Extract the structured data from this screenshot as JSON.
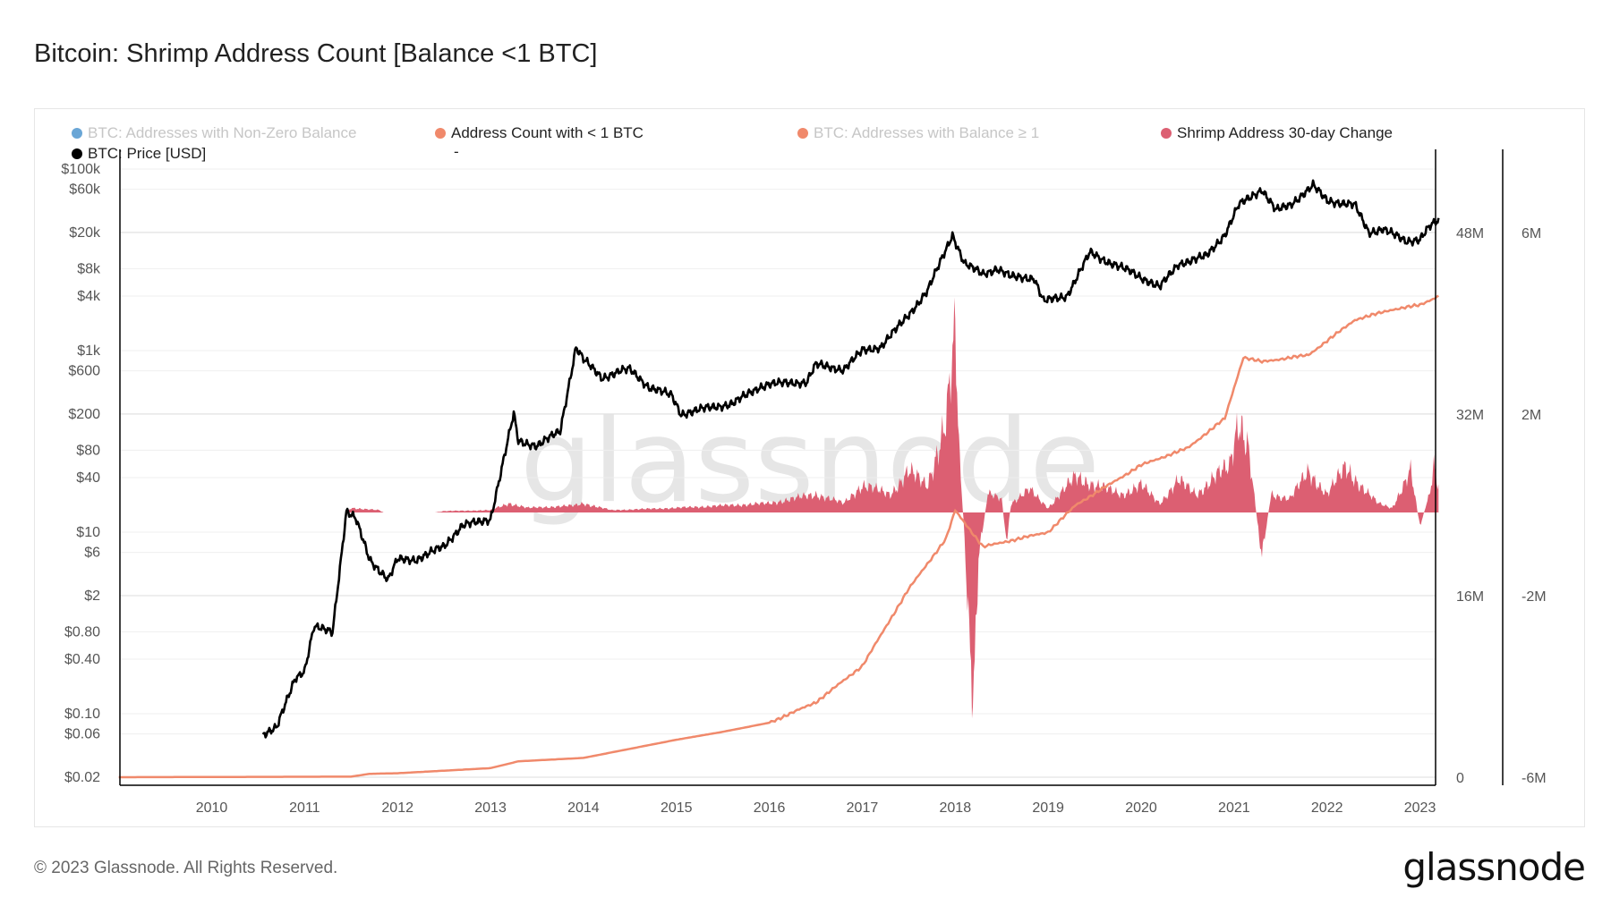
{
  "header": {
    "title": "Bitcoin: Shrimp Address Count [Balance <1 BTC]"
  },
  "footer": {
    "copyright": "© 2023 Glassnode. All Rights Reserved.",
    "logo": "glassnode"
  },
  "watermark": "glassnode",
  "legend": [
    {
      "label": "BTC: Addresses with Non-Zero Balance",
      "color": "#6aa6d6",
      "active": false
    },
    {
      "label": "Address Count with < 1 BTC",
      "color": "#f0896b",
      "active": true
    },
    {
      "label": "BTC: Addresses with Balance ≥ 1",
      "color": "#f0896b",
      "active": false
    },
    {
      "label": "Shrimp Address 30-day Change",
      "color": "#dc5f72",
      "active": true
    },
    {
      "label": "BTC: Price [USD]",
      "color": "#000000",
      "active": true
    },
    {
      "label": "-",
      "color": "",
      "active": true
    }
  ],
  "chart_data": {
    "type": "line",
    "title": "Bitcoin: Shrimp Address Count [Balance <1 BTC]",
    "x_ticks": [
      "2010",
      "2011",
      "2012",
      "2013",
      "2014",
      "2015",
      "2016",
      "2017",
      "2018",
      "2019",
      "2020",
      "2021",
      "2022",
      "2023"
    ],
    "xlim": [
      2009.0,
      2023.2
    ],
    "y_left": {
      "scale": "log",
      "ticks": [
        "$100k",
        "$60k",
        "$20k",
        "$8k",
        "$4k",
        "$1k",
        "$600",
        "$200",
        "$80",
        "$40",
        "$10",
        "$6",
        "$2",
        "$0.80",
        "$0.40",
        "$0.10",
        "$0.06",
        "$0.02"
      ],
      "tick_values": [
        100000,
        60000,
        20000,
        8000,
        4000,
        1000,
        600,
        200,
        80,
        40,
        10,
        6,
        2,
        0.8,
        0.4,
        0.1,
        0.06,
        0.02
      ]
    },
    "y_right1": {
      "ticks": [
        "48M",
        "32M",
        "16M",
        "0"
      ],
      "tick_values": [
        48,
        32,
        16,
        0
      ],
      "unit": "M"
    },
    "y_right2": {
      "ticks": [
        "6M",
        "2M",
        "-2M",
        "-6M"
      ],
      "tick_values": [
        6,
        2,
        -2,
        -6
      ],
      "unit": "M"
    },
    "grid": true,
    "legend_position": "top",
    "series": [
      {
        "name": "BTC: Price [USD]",
        "type": "line",
        "axis": "left",
        "color": "#000000",
        "points": [
          [
            2010.55,
            0.06
          ],
          [
            2010.7,
            0.07
          ],
          [
            2010.9,
            0.25
          ],
          [
            2011.0,
            0.3
          ],
          [
            2011.1,
            0.9
          ],
          [
            2011.3,
            0.8
          ],
          [
            2011.45,
            17
          ],
          [
            2011.55,
            14
          ],
          [
            2011.7,
            5
          ],
          [
            2011.9,
            3
          ],
          [
            2012.0,
            5
          ],
          [
            2012.2,
            5
          ],
          [
            2012.5,
            7
          ],
          [
            2012.7,
            12
          ],
          [
            2012.9,
            13
          ],
          [
            2013.0,
            14
          ],
          [
            2013.25,
            200
          ],
          [
            2013.3,
            100
          ],
          [
            2013.5,
            90
          ],
          [
            2013.75,
            130
          ],
          [
            2013.92,
            1100
          ],
          [
            2014.0,
            800
          ],
          [
            2014.2,
            500
          ],
          [
            2014.4,
            600
          ],
          [
            2014.5,
            620
          ],
          [
            2014.7,
            400
          ],
          [
            2014.95,
            320
          ],
          [
            2015.05,
            200
          ],
          [
            2015.3,
            230
          ],
          [
            2015.6,
            260
          ],
          [
            2015.9,
            400
          ],
          [
            2016.0,
            430
          ],
          [
            2016.4,
            450
          ],
          [
            2016.5,
            700
          ],
          [
            2016.8,
            620
          ],
          [
            2017.0,
            1000
          ],
          [
            2017.2,
            1100
          ],
          [
            2017.5,
            2500
          ],
          [
            2017.7,
            4500
          ],
          [
            2017.97,
            19000
          ],
          [
            2018.1,
            9000
          ],
          [
            2018.3,
            7000
          ],
          [
            2018.45,
            8000
          ],
          [
            2018.6,
            6500
          ],
          [
            2018.85,
            6300
          ],
          [
            2018.95,
            3500
          ],
          [
            2019.2,
            4000
          ],
          [
            2019.45,
            12000
          ],
          [
            2019.6,
            10000
          ],
          [
            2019.9,
            7300
          ],
          [
            2020.2,
            5000
          ],
          [
            2020.4,
            9000
          ],
          [
            2020.7,
            11000
          ],
          [
            2020.9,
            19000
          ],
          [
            2021.05,
            40000
          ],
          [
            2021.3,
            60000
          ],
          [
            2021.45,
            35000
          ],
          [
            2021.6,
            40000
          ],
          [
            2021.85,
            66000
          ],
          [
            2022.0,
            45000
          ],
          [
            2022.3,
            40000
          ],
          [
            2022.45,
            20000
          ],
          [
            2022.6,
            22000
          ],
          [
            2022.85,
            16000
          ],
          [
            2023.0,
            17000
          ],
          [
            2023.1,
            23000
          ],
          [
            2023.2,
            27000
          ]
        ]
      },
      {
        "name": "Address Count with < 1 BTC",
        "type": "line",
        "axis": "right1",
        "color": "#f0896b",
        "points": [
          [
            2009.0,
            0
          ],
          [
            2011.5,
            0.05
          ],
          [
            2011.7,
            0.3
          ],
          [
            2012.0,
            0.35
          ],
          [
            2013.0,
            0.8
          ],
          [
            2013.3,
            1.4
          ],
          [
            2014.0,
            1.7
          ],
          [
            2014.5,
            2.5
          ],
          [
            2015.0,
            3.3
          ],
          [
            2015.5,
            4.0
          ],
          [
            2016.0,
            4.8
          ],
          [
            2016.5,
            6.6
          ],
          [
            2017.0,
            9.8
          ],
          [
            2017.5,
            16.6
          ],
          [
            2017.9,
            21
          ],
          [
            2018.0,
            23.5
          ],
          [
            2018.3,
            20.3
          ],
          [
            2019.0,
            21.6
          ],
          [
            2019.3,
            24
          ],
          [
            2020.0,
            27.5
          ],
          [
            2020.5,
            29
          ],
          [
            2020.9,
            31.6
          ],
          [
            2021.1,
            37
          ],
          [
            2021.3,
            36.6
          ],
          [
            2021.8,
            37.2
          ],
          [
            2022.3,
            40.3
          ],
          [
            2022.7,
            41.2
          ],
          [
            2023.0,
            41.6
          ],
          [
            2023.2,
            42.4
          ]
        ]
      },
      {
        "name": "Shrimp Address 30-day Change",
        "type": "area",
        "axis": "right2",
        "color": "#dc5f72",
        "points": [
          [
            2011.45,
            0
          ],
          [
            2011.5,
            0.1
          ],
          [
            2011.8,
            0.05
          ],
          [
            2011.85,
            0
          ],
          [
            2012.4,
            0
          ],
          [
            2012.5,
            0.03
          ],
          [
            2013.0,
            0.05
          ],
          [
            2013.2,
            0.2
          ],
          [
            2013.4,
            0.1
          ],
          [
            2013.9,
            0.15
          ],
          [
            2014.0,
            0.2
          ],
          [
            2014.3,
            0.05
          ],
          [
            2015.0,
            0.1
          ],
          [
            2015.5,
            0.15
          ],
          [
            2016.0,
            0.2
          ],
          [
            2016.5,
            0.4
          ],
          [
            2016.8,
            0.2
          ],
          [
            2017.0,
            0.6
          ],
          [
            2017.3,
            0.4
          ],
          [
            2017.5,
            0.9
          ],
          [
            2017.7,
            0.6
          ],
          [
            2017.9,
            2
          ],
          [
            2018.0,
            3.8
          ],
          [
            2018.05,
            1
          ],
          [
            2018.1,
            -0.5
          ],
          [
            2018.15,
            -3
          ],
          [
            2018.2,
            -4.4
          ],
          [
            2018.25,
            -1
          ],
          [
            2018.35,
            0.4
          ],
          [
            2018.5,
            0.3
          ],
          [
            2018.55,
            -0.7
          ],
          [
            2018.6,
            0.2
          ],
          [
            2018.8,
            0.5
          ],
          [
            2019.0,
            0.1
          ],
          [
            2019.3,
            0.8
          ],
          [
            2019.5,
            0.6
          ],
          [
            2019.8,
            0.4
          ],
          [
            2020.0,
            0.6
          ],
          [
            2020.2,
            0.2
          ],
          [
            2020.4,
            0.7
          ],
          [
            2020.6,
            0.4
          ],
          [
            2020.8,
            0.8
          ],
          [
            2020.95,
            1.0
          ],
          [
            2021.05,
            2.1
          ],
          [
            2021.15,
            1.5
          ],
          [
            2021.25,
            -0.2
          ],
          [
            2021.3,
            -0.9
          ],
          [
            2021.4,
            0.4
          ],
          [
            2021.6,
            0.3
          ],
          [
            2021.8,
            0.9
          ],
          [
            2022.0,
            0.4
          ],
          [
            2022.2,
            1.0
          ],
          [
            2022.4,
            0.5
          ],
          [
            2022.55,
            0.2
          ],
          [
            2022.7,
            0.1
          ],
          [
            2022.9,
            0.9
          ],
          [
            2023.0,
            -0.3
          ],
          [
            2023.1,
            0.4
          ],
          [
            2023.15,
            1.1
          ],
          [
            2023.2,
            0.6
          ]
        ]
      }
    ]
  }
}
